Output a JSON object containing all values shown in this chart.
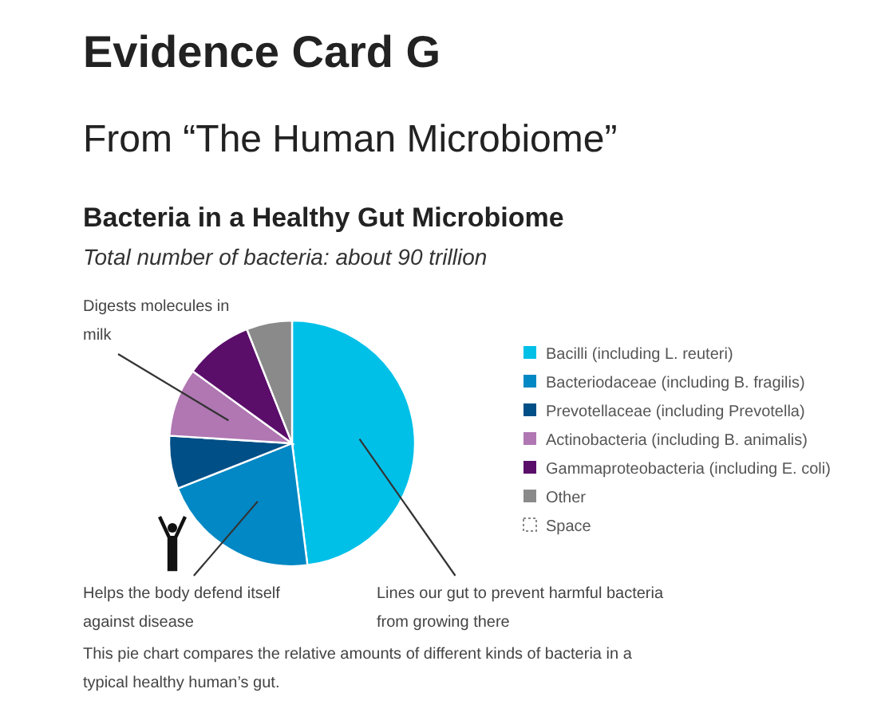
{
  "chart_data": {
    "type": "pie",
    "title": "Bacteria in a Healthy Gut Microbiome",
    "subtitle": "Total number of bacteria: about 90 trillion",
    "categories": [
      "Bacilli (including L. reuteri)",
      "Bacteriodaceae (including B. fragilis)",
      "Prevotellaceae (including Prevotella)",
      "Actinobacteria (including B. animalis)",
      "Gammaproteobacteria (including E. coli)",
      "Other",
      "Space"
    ],
    "values": [
      48,
      21,
      7,
      9,
      9,
      6,
      0
    ],
    "colors": [
      "#00c0e8",
      "#0288c4",
      "#004f87",
      "#b077b3",
      "#5a0e6a",
      "#8a8a8a",
      null
    ],
    "legend": "right",
    "annotations": [
      "Evidence Card G",
      "From “The Human Microbiome”",
      {
        "text": "Digests molecules in milk",
        "x": "Actinobacteria (including B. animalis)"
      },
      {
        "text": "Helps the body defend itself against disease",
        "x": "Bacteriodaceae (including B. fragilis)"
      },
      {
        "text": "Lines our gut to prevent harmful bacteria from growing there",
        "x": "Bacilli (including L. reuteri)"
      },
      "This pie chart compares the relative amounts of different kinds of bacteria in a typical healthy human’s gut."
    ]
  }
}
